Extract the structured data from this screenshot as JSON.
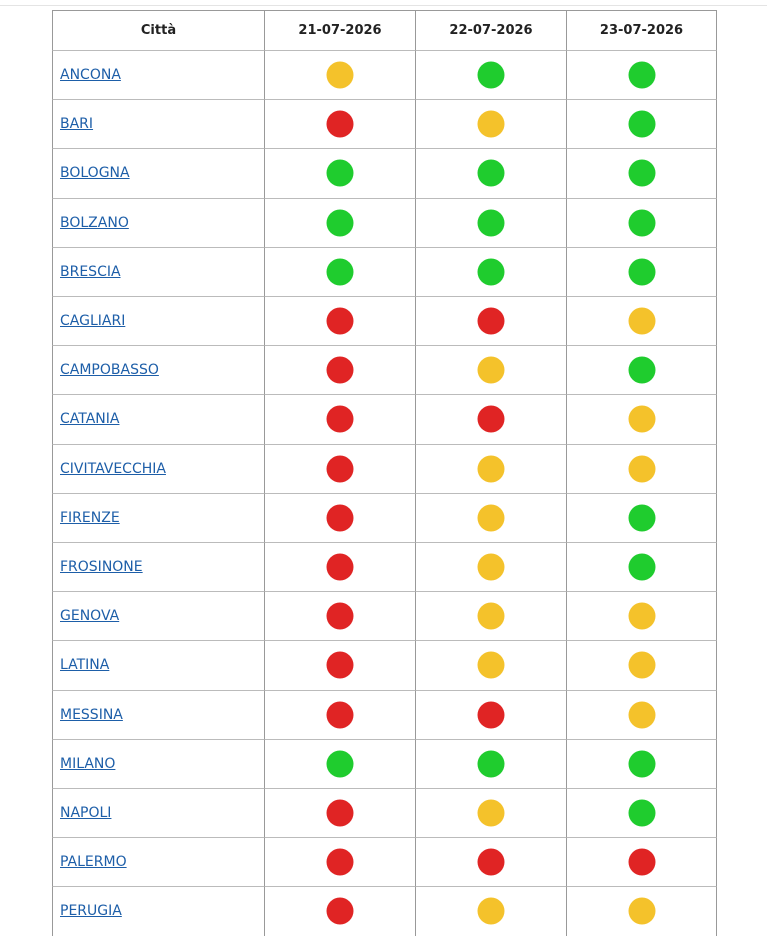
{
  "table": {
    "header": [
      "Città",
      "21-07-2026",
      "22-07-2026",
      "23-07-2026"
    ],
    "rows": [
      [
        "ANCONA",
        "#f4c22b",
        "#1fcc2e",
        "#1fcc2e"
      ],
      [
        "BARI",
        "#e02424",
        "#f4c22b",
        "#1fcc2e"
      ],
      [
        "BOLOGNA",
        "#1fcc2e",
        "#1fcc2e",
        "#1fcc2e"
      ],
      [
        "BOLZANO",
        "#1fcc2e",
        "#1fcc2e",
        "#1fcc2e"
      ],
      [
        "BRESCIA",
        "#1fcc2e",
        "#1fcc2e",
        "#1fcc2e"
      ],
      [
        "CAGLIARI",
        "#e02424",
        "#e02424",
        "#f4c22b"
      ],
      [
        "CAMPOBASSO",
        "#e02424",
        "#f4c22b",
        "#1fcc2e"
      ],
      [
        "CATANIA",
        "#e02424",
        "#e02424",
        "#f4c22b"
      ],
      [
        "CIVITAVECCHIA",
        "#e02424",
        "#f4c22b",
        "#f4c22b"
      ],
      [
        "FIRENZE",
        "#e02424",
        "#f4c22b",
        "#1fcc2e"
      ],
      [
        "FROSINONE",
        "#e02424",
        "#f4c22b",
        "#1fcc2e"
      ],
      [
        "GENOVA",
        "#e02424",
        "#f4c22b",
        "#f4c22b"
      ],
      [
        "LATINA",
        "#e02424",
        "#f4c22b",
        "#f4c22b"
      ],
      [
        "MESSINA",
        "#e02424",
        "#e02424",
        "#f4c22b"
      ],
      [
        "MILANO",
        "#1fcc2e",
        "#1fcc2e",
        "#1fcc2e"
      ],
      [
        "NAPOLI",
        "#e02424",
        "#f4c22b",
        "#1fcc2e"
      ],
      [
        "PALERMO",
        "#e02424",
        "#e02424",
        "#e02424"
      ],
      [
        "PERUGIA",
        "#e02424",
        "#f4c22b",
        "#f4c22b"
      ]
    ]
  }
}
